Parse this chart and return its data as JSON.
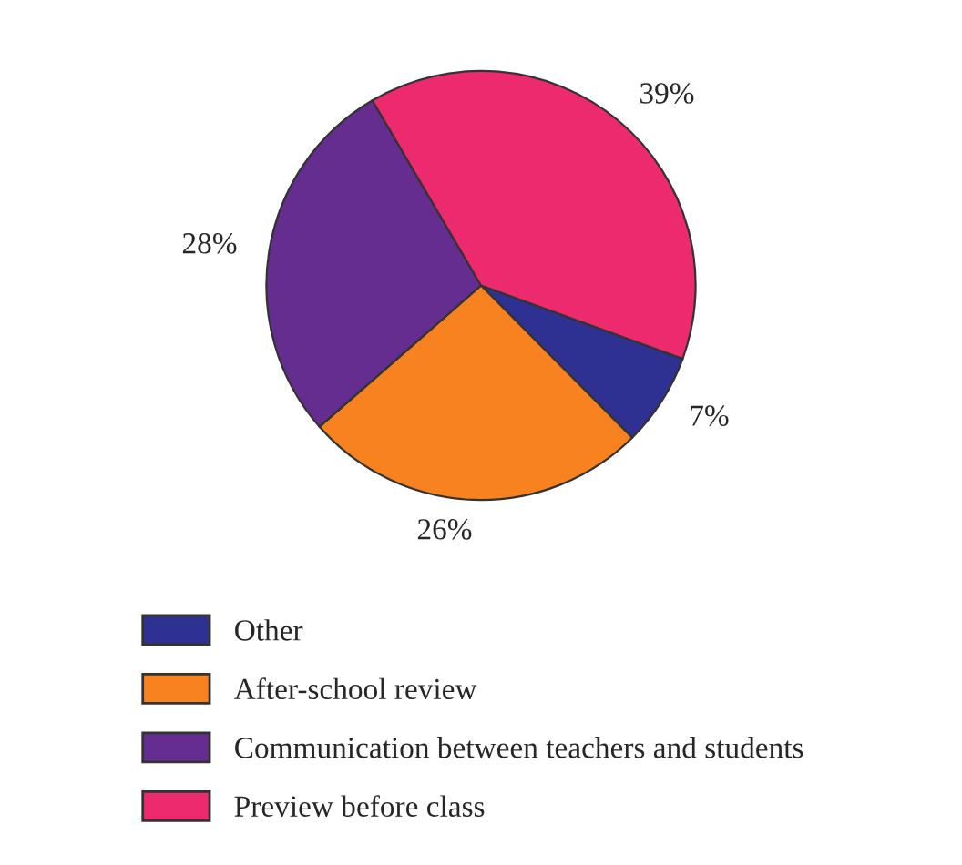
{
  "chart_data": {
    "type": "pie",
    "categories": [
      "Other",
      "After-school review",
      "Communication between teachers and students",
      "Preview before class"
    ],
    "values": [
      7,
      26,
      28,
      39
    ],
    "colors": [
      "#2e3192",
      "#f7821f",
      "#662d91",
      "#ee2a6f"
    ],
    "value_labels": [
      "7%",
      "26%",
      "28%",
      "39%"
    ],
    "legend": "bottom"
  }
}
